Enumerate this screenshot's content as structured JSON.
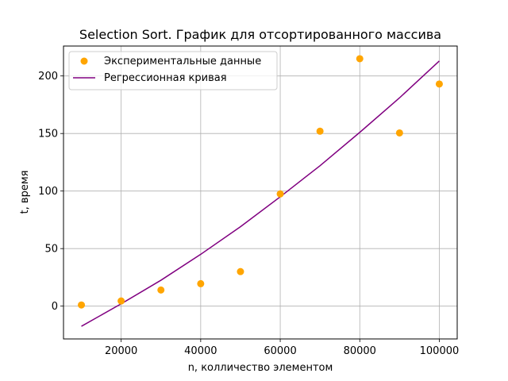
{
  "chart_data": {
    "type": "scatter",
    "title": "Selection Sort. График для отсортированного массива",
    "xlabel": "n, колличество элементом",
    "ylabel": "t, время",
    "xlim": [
      5500,
      104500
    ],
    "ylim": [
      -28.5,
      226
    ],
    "xticks": [
      20000,
      40000,
      60000,
      80000,
      100000
    ],
    "xtick_labels": [
      "20000",
      "40000",
      "60000",
      "80000",
      "100000"
    ],
    "yticks": [
      0,
      50,
      100,
      150,
      200
    ],
    "ytick_labels": [
      "0",
      "50",
      "100",
      "150",
      "200"
    ],
    "grid": true,
    "legend_position": "upper-left",
    "series": [
      {
        "name": "Экспериментальные данные",
        "kind": "scatter",
        "color": "#ffa500",
        "x": [
          10000,
          20000,
          30000,
          40000,
          50000,
          60000,
          70000,
          80000,
          90000,
          100000
        ],
        "y": [
          1,
          4.5,
          14,
          19.5,
          30,
          97.5,
          152,
          215,
          150.5,
          193
        ]
      },
      {
        "name": "Регрессионная кривая",
        "kind": "line",
        "color": "#800080",
        "x": [
          10000,
          20000,
          30000,
          40000,
          50000,
          60000,
          70000,
          80000,
          90000,
          100000
        ],
        "y": [
          -17.5,
          2,
          22.5,
          45,
          69,
          95,
          122,
          151,
          181,
          213
        ]
      }
    ]
  }
}
